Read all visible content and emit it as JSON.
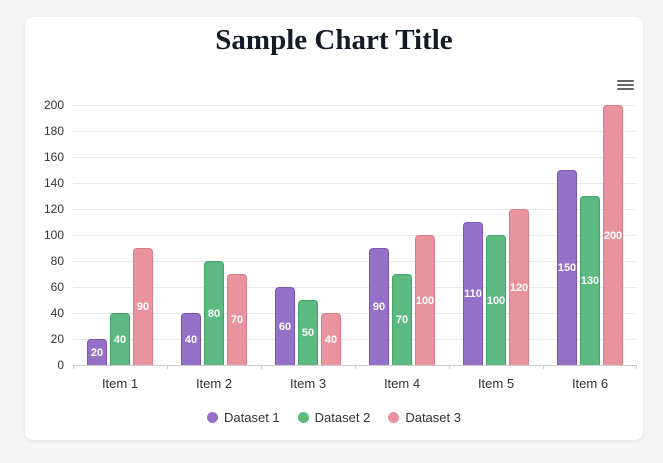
{
  "window": {
    "background_color": "#f4f4f5",
    "card_background_color": "#ffffff"
  },
  "header": {
    "title": "Sample Chart Title",
    "title_color": "#141a26"
  },
  "toolbar": {
    "menu_icon": "hamburger-menu-icon",
    "menu_icon_color": "#666666"
  },
  "chart_data": {
    "type": "bar",
    "title": "Sample Chart Title",
    "categories": [
      "Item 1",
      "Item 2",
      "Item 3",
      "Item 4",
      "Item 5",
      "Item 6"
    ],
    "series": [
      {
        "name": "Dataset 1",
        "color": "#9471c7",
        "border_color": "#7e57b5",
        "values": [
          20,
          40,
          60,
          90,
          110,
          150
        ]
      },
      {
        "name": "Dataset 2",
        "color": "#5cb982",
        "border_color": "#43a56b",
        "values": [
          40,
          80,
          50,
          70,
          100,
          130
        ]
      },
      {
        "name": "Dataset 3",
        "color": "#e8939e",
        "border_color": "#da7d8b",
        "values": [
          90,
          70,
          40,
          100,
          120,
          200
        ]
      }
    ],
    "xlabel": "",
    "ylabel": "",
    "ylim": [
      0,
      200
    ],
    "ytick_step": 20,
    "grid": true,
    "gridline_color": "#e8e8e8",
    "axis_line_color": "#cccccc",
    "axis_text_color": "#333333",
    "legend_position": "bottom",
    "data_labels": true,
    "data_label_color": "#ffffff"
  }
}
